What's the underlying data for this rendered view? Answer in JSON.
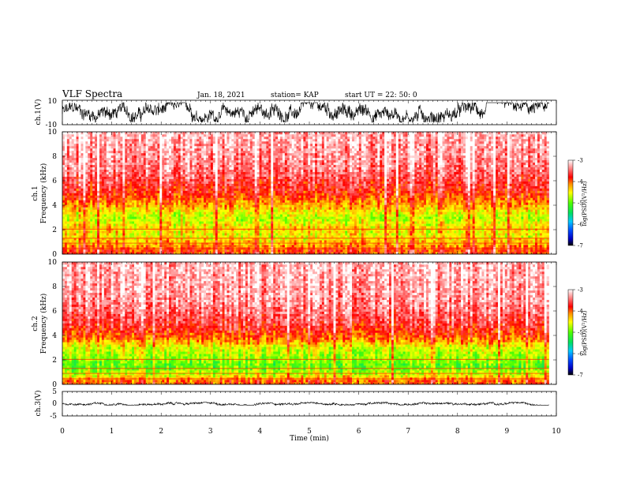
{
  "header": {
    "title": "VLF Spectra",
    "date": "Jan. 18, 2021",
    "station": "station= KAP",
    "start": "start  UT =  22: 50: 0"
  },
  "chart_data": [
    {
      "id": "ch1-waveform",
      "type": "line",
      "ylabel": "ch.1(V)",
      "ylim": [
        -10,
        10
      ],
      "yticks": [
        "10",
        "-10"
      ],
      "xlim": [
        0,
        10
      ],
      "series": [
        {
          "color": "#000000",
          "x_range": [
            0,
            9.85
          ],
          "values_range": [
            -8,
            8
          ],
          "mean": 0
        }
      ]
    },
    {
      "id": "ch1-spectrogram",
      "type": "heatmap",
      "ylabel": "ch.1\nFrequency (kHz)",
      "ylabel_lines": [
        "ch.1",
        "Frequency (kHz)"
      ],
      "ylim": [
        0,
        10
      ],
      "yticks": [
        "0",
        "2",
        "4",
        "6",
        "8",
        "10"
      ],
      "xlim": [
        0,
        10
      ],
      "x_data_range": [
        0,
        9.85
      ],
      "colorbar": {
        "label": "log(PSD)(V²/Hz)",
        "range": [
          -7,
          -3
        ],
        "ticks": [
          "-3",
          "-4",
          "-5",
          "-6",
          "-7"
        ]
      },
      "power_profile": [
        {
          "f": 0.3,
          "v": -3.9
        },
        {
          "f": 0.8,
          "v": -4.2
        },
        {
          "f": 1.5,
          "v": -4.5
        },
        {
          "f": 2.2,
          "v": -4.4
        },
        {
          "f": 3.0,
          "v": -4.7
        },
        {
          "f": 3.8,
          "v": -4.3
        },
        {
          "f": 5.0,
          "v": -3.8
        },
        {
          "f": 7.0,
          "v": -3.4
        },
        {
          "f": 10.0,
          "v": -3.2
        }
      ]
    },
    {
      "id": "ch2-spectrogram",
      "type": "heatmap",
      "ylabel": "ch.2\nFrequency (kHz)",
      "ylabel_lines": [
        "ch.2",
        "Frequency (kHz)"
      ],
      "ylim": [
        0,
        10
      ],
      "yticks": [
        "0",
        "2",
        "4",
        "6",
        "8",
        "10"
      ],
      "xlim": [
        0,
        10
      ],
      "x_data_range": [
        0,
        9.85
      ],
      "colorbar": {
        "label": "log(PSD)(V²/Hz)",
        "range": [
          -7,
          -3
        ],
        "ticks": [
          "-3",
          "-4",
          "-5",
          "-6",
          "-7"
        ]
      },
      "power_profile": [
        {
          "f": 0.3,
          "v": -4.0
        },
        {
          "f": 0.8,
          "v": -4.6
        },
        {
          "f": 1.5,
          "v": -5.0
        },
        {
          "f": 2.2,
          "v": -4.8
        },
        {
          "f": 3.0,
          "v": -4.6
        },
        {
          "f": 3.8,
          "v": -4.0
        },
        {
          "f": 5.0,
          "v": -3.6
        },
        {
          "f": 7.0,
          "v": -3.3
        },
        {
          "f": 10.0,
          "v": -3.2
        }
      ]
    },
    {
      "id": "ch3-waveform",
      "type": "line",
      "ylabel": "ch.3(V)",
      "ylim": [
        -5,
        5
      ],
      "yticks": [
        "5",
        "0",
        "-5"
      ],
      "xlim": [
        0,
        10
      ],
      "series": [
        {
          "color": "#000000",
          "x_range": [
            0,
            9.85
          ],
          "values_range": [
            -0.6,
            0.6
          ],
          "mean": 0
        }
      ]
    }
  ],
  "xaxis": {
    "label": "Time (min)",
    "ticks": [
      "0",
      "1",
      "2",
      "3",
      "4",
      "5",
      "6",
      "7",
      "8",
      "9",
      "10"
    ],
    "range": [
      0,
      10
    ]
  }
}
